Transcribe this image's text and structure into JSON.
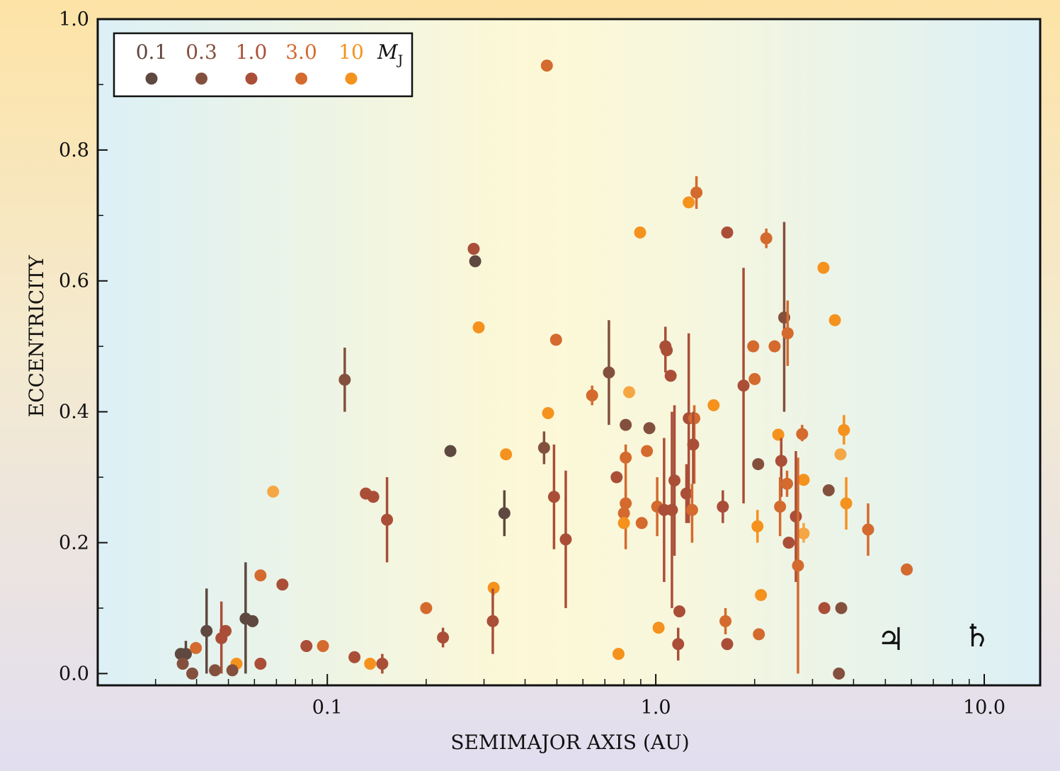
{
  "chart_data": {
    "type": "scatter",
    "title": "",
    "xlabel": "SEMIMAJOR AXIS (AU)",
    "ylabel": "ECCENTRICITY",
    "xscale": "log",
    "xlim": [
      0.02,
      14.8
    ],
    "ylim": [
      -0.018,
      1.0
    ],
    "xticks": [
      {
        "v": 0.1,
        "label": "0.1"
      },
      {
        "v": 1.0,
        "label": "1.0"
      },
      {
        "v": 10.0,
        "label": "10.0"
      }
    ],
    "yticks": [
      {
        "v": 0.0,
        "label": "0.0"
      },
      {
        "v": 0.2,
        "label": "0.2"
      },
      {
        "v": 0.4,
        "label": "0.4"
      },
      {
        "v": 0.6,
        "label": "0.6"
      },
      {
        "v": 0.8,
        "label": "0.8"
      },
      {
        "v": 1.0,
        "label": "1.0"
      }
    ],
    "grid": false,
    "legend": {
      "position": "top-left",
      "unit": "M",
      "unit_sub": "J",
      "entries": [
        {
          "label": "0.1",
          "color": "#5e4840"
        },
        {
          "label": "0.3",
          "color": "#84503e"
        },
        {
          "label": "1.0",
          "color": "#aa4e38"
        },
        {
          "label": "3.0",
          "color": "#d46a2e"
        },
        {
          "label": "10",
          "color": "#f5921e"
        }
      ]
    },
    "extra_colors": [
      "#f5a745"
    ],
    "annotations": [
      {
        "symbol": "♃",
        "name": "Jupiter",
        "a": 5.2,
        "e": 0.045
      },
      {
        "symbol": "♄",
        "name": "Saturn",
        "a": 9.5,
        "e": 0.05
      }
    ],
    "points": [
      {
        "a": 0.466,
        "e": 0.929,
        "m": 3
      },
      {
        "a": 1.33,
        "e": 0.735,
        "m": 3,
        "err": [
          0.71,
          0.76
        ]
      },
      {
        "a": 1.26,
        "e": 0.72,
        "m": 4
      },
      {
        "a": 0.896,
        "e": 0.674,
        "m": 4
      },
      {
        "a": 1.65,
        "e": 0.674,
        "m": 2
      },
      {
        "a": 2.17,
        "e": 0.665,
        "m": 3,
        "err": [
          0.65,
          0.68
        ]
      },
      {
        "a": 0.279,
        "e": 0.649,
        "m": 2
      },
      {
        "a": 0.282,
        "e": 0.63,
        "m": 0
      },
      {
        "a": 3.24,
        "e": 0.62,
        "m": 4
      },
      {
        "a": 3.51,
        "e": 0.54,
        "m": 4
      },
      {
        "a": 2.46,
        "e": 0.544,
        "m": 1,
        "err": [
          0.4,
          0.69
        ]
      },
      {
        "a": 2.52,
        "e": 0.52,
        "m": 3,
        "err": [
          0.47,
          0.57
        ]
      },
      {
        "a": 0.289,
        "e": 0.529,
        "m": 4
      },
      {
        "a": 0.497,
        "e": 0.51,
        "m": 3
      },
      {
        "a": 1.98,
        "e": 0.5,
        "m": 3
      },
      {
        "a": 2.3,
        "e": 0.5,
        "m": 3
      },
      {
        "a": 1.07,
        "e": 0.5,
        "m": 2,
        "err": [
          0.46,
          0.53
        ]
      },
      {
        "a": 1.08,
        "e": 0.494,
        "m": 2
      },
      {
        "a": 0.113,
        "e": 0.449,
        "m": 1,
        "err": [
          0.4,
          0.498
        ]
      },
      {
        "a": 0.72,
        "e": 0.46,
        "m": 1,
        "err": [
          0.38,
          0.54
        ]
      },
      {
        "a": 1.11,
        "e": 0.455,
        "m": 2
      },
      {
        "a": 2.0,
        "e": 0.45,
        "m": 3
      },
      {
        "a": 1.85,
        "e": 0.44,
        "m": 2,
        "err": [
          0.26,
          0.62
        ]
      },
      {
        "a": 0.64,
        "e": 0.425,
        "m": 3,
        "err": [
          0.41,
          0.44
        ]
      },
      {
        "a": 0.83,
        "e": 0.43,
        "m": 5
      },
      {
        "a": 1.5,
        "e": 0.41,
        "m": 4
      },
      {
        "a": 0.47,
        "e": 0.398,
        "m": 4
      },
      {
        "a": 0.81,
        "e": 0.38,
        "m": 1
      },
      {
        "a": 0.956,
        "e": 0.375,
        "m": 1
      },
      {
        "a": 1.26,
        "e": 0.39,
        "m": 2,
        "err": [
          0.23,
          0.52
        ]
      },
      {
        "a": 1.31,
        "e": 0.39,
        "m": 3,
        "err": [
          0.29,
          0.41
        ]
      },
      {
        "a": 3.74,
        "e": 0.372,
        "m": 4,
        "err": [
          0.35,
          0.395
        ]
      },
      {
        "a": 2.79,
        "e": 0.366,
        "m": 3,
        "err": [
          0.355,
          0.38
        ]
      },
      {
        "a": 2.36,
        "e": 0.365,
        "m": 4
      },
      {
        "a": 0.237,
        "e": 0.34,
        "m": 0
      },
      {
        "a": 0.35,
        "e": 0.335,
        "m": 4
      },
      {
        "a": 0.94,
        "e": 0.34,
        "m": 3
      },
      {
        "a": 3.65,
        "e": 0.335,
        "m": 5
      },
      {
        "a": 0.457,
        "e": 0.345,
        "m": 1,
        "err": [
          0.32,
          0.37
        ]
      },
      {
        "a": 1.3,
        "e": 0.35,
        "m": 2,
        "err": [
          0.29,
          0.4
        ]
      },
      {
        "a": 0.81,
        "e": 0.33,
        "m": 3,
        "err": [
          0.19,
          0.35
        ]
      },
      {
        "a": 2.41,
        "e": 0.325,
        "m": 2,
        "err": [
          0.27,
          0.36
        ]
      },
      {
        "a": 2.05,
        "e": 0.32,
        "m": 1
      },
      {
        "a": 0.76,
        "e": 0.3,
        "m": 2
      },
      {
        "a": 1.14,
        "e": 0.295,
        "m": 2,
        "err": [
          0.18,
          0.41
        ]
      },
      {
        "a": 2.82,
        "e": 0.296,
        "m": 4
      },
      {
        "a": 2.51,
        "e": 0.29,
        "m": 3,
        "err": [
          0.27,
          0.31
        ]
      },
      {
        "a": 0.0684,
        "e": 0.278,
        "m": 5
      },
      {
        "a": 3.36,
        "e": 0.28,
        "m": 1
      },
      {
        "a": 0.131,
        "e": 0.275,
        "m": 2
      },
      {
        "a": 0.138,
        "e": 0.27,
        "m": 2
      },
      {
        "a": 1.24,
        "e": 0.275,
        "m": 2,
        "err": [
          0.23,
          0.32
        ]
      },
      {
        "a": 0.49,
        "e": 0.27,
        "m": 2,
        "err": [
          0.19,
          0.35
        ]
      },
      {
        "a": 0.81,
        "e": 0.26,
        "m": 3,
        "err": [
          0.23,
          0.28
        ]
      },
      {
        "a": 3.8,
        "e": 0.26,
        "m": 4,
        "err": [
          0.22,
          0.3
        ]
      },
      {
        "a": 1.6,
        "e": 0.255,
        "m": 2,
        "err": [
          0.23,
          0.28
        ]
      },
      {
        "a": 2.39,
        "e": 0.255,
        "m": 3,
        "err": [
          0.21,
          0.3
        ]
      },
      {
        "a": 1.01,
        "e": 0.255,
        "m": 3,
        "err": [
          0.21,
          0.3
        ]
      },
      {
        "a": 0.346,
        "e": 0.245,
        "m": 0,
        "err": [
          0.21,
          0.28
        ]
      },
      {
        "a": 0.8,
        "e": 0.245,
        "m": 3
      },
      {
        "a": 1.06,
        "e": 0.25,
        "m": 2,
        "err": [
          0.14,
          0.36
        ]
      },
      {
        "a": 1.12,
        "e": 0.25,
        "m": 2,
        "err": [
          0.1,
          0.4
        ]
      },
      {
        "a": 1.29,
        "e": 0.25,
        "m": 3,
        "err": [
          0.2,
          0.29
        ]
      },
      {
        "a": 0.152,
        "e": 0.235,
        "m": 2,
        "err": [
          0.17,
          0.3
        ]
      },
      {
        "a": 2.67,
        "e": 0.24,
        "m": 2,
        "err": [
          0.14,
          0.34
        ]
      },
      {
        "a": 0.906,
        "e": 0.23,
        "m": 3
      },
      {
        "a": 0.8,
        "e": 0.23,
        "m": 4
      },
      {
        "a": 2.04,
        "e": 0.225,
        "m": 4,
        "err": [
          0.2,
          0.25
        ]
      },
      {
        "a": 4.43,
        "e": 0.22,
        "m": 3,
        "err": [
          0.18,
          0.26
        ]
      },
      {
        "a": 2.82,
        "e": 0.214,
        "m": 5,
        "err": [
          0.2,
          0.23
        ]
      },
      {
        "a": 0.532,
        "e": 0.205,
        "m": 2,
        "err": [
          0.1,
          0.31
        ]
      },
      {
        "a": 2.54,
        "e": 0.2,
        "m": 2
      },
      {
        "a": 2.71,
        "e": 0.165,
        "m": 3,
        "err": [
          0.0,
          0.33
        ]
      },
      {
        "a": 5.81,
        "e": 0.159,
        "m": 3
      },
      {
        "a": 0.0626,
        "e": 0.15,
        "m": 3
      },
      {
        "a": 0.073,
        "e": 0.136,
        "m": 2
      },
      {
        "a": 0.321,
        "e": 0.131,
        "m": 4,
        "err": [
          0.12,
          0.14
        ]
      },
      {
        "a": 2.09,
        "e": 0.12,
        "m": 4
      },
      {
        "a": 0.2,
        "e": 0.1,
        "m": 3
      },
      {
        "a": 3.26,
        "e": 0.1,
        "m": 2
      },
      {
        "a": 3.67,
        "e": 0.1,
        "m": 1
      },
      {
        "a": 1.18,
        "e": 0.095,
        "m": 2
      },
      {
        "a": 0.0564,
        "e": 0.084,
        "m": 0,
        "err": [
          0.0,
          0.17
        ]
      },
      {
        "a": 0.0592,
        "e": 0.08,
        "m": 0
      },
      {
        "a": 0.319,
        "e": 0.08,
        "m": 2,
        "err": [
          0.03,
          0.13
        ]
      },
      {
        "a": 1.63,
        "e": 0.08,
        "m": 3,
        "err": [
          0.06,
          0.1
        ]
      },
      {
        "a": 0.0429,
        "e": 0.065,
        "m": 0,
        "err": [
          0.0,
          0.13
        ]
      },
      {
        "a": 0.049,
        "e": 0.065,
        "m": 2
      },
      {
        "a": 0.0476,
        "e": 0.054,
        "m": 2,
        "err": [
          0.0,
          0.11
        ]
      },
      {
        "a": 0.225,
        "e": 0.055,
        "m": 2,
        "err": [
          0.04,
          0.07
        ]
      },
      {
        "a": 1.02,
        "e": 0.07,
        "m": 4
      },
      {
        "a": 2.06,
        "e": 0.06,
        "m": 3
      },
      {
        "a": 0.0864,
        "e": 0.042,
        "m": 2
      },
      {
        "a": 0.097,
        "e": 0.042,
        "m": 3
      },
      {
        "a": 1.17,
        "e": 0.045,
        "m": 2,
        "err": [
          0.02,
          0.07
        ]
      },
      {
        "a": 1.65,
        "e": 0.045,
        "m": 2
      },
      {
        "a": 0.77,
        "e": 0.03,
        "m": 4
      },
      {
        "a": 0.121,
        "e": 0.025,
        "m": 2
      },
      {
        "a": 0.0358,
        "e": 0.03,
        "m": 0
      },
      {
        "a": 0.0371,
        "e": 0.03,
        "m": 0,
        "err": [
          0.01,
          0.05
        ]
      },
      {
        "a": 0.0398,
        "e": 0.039,
        "m": 3
      },
      {
        "a": 0.0363,
        "e": 0.015,
        "m": 1
      },
      {
        "a": 0.0529,
        "e": 0.015,
        "m": 4
      },
      {
        "a": 0.0626,
        "e": 0.015,
        "m": 2
      },
      {
        "a": 0.135,
        "e": 0.015,
        "m": 4
      },
      {
        "a": 0.147,
        "e": 0.015,
        "m": 2,
        "err": [
          0.0,
          0.03
        ]
      },
      {
        "a": 0.0388,
        "e": 0.0,
        "m": 1
      },
      {
        "a": 0.0455,
        "e": 0.005,
        "m": 1
      },
      {
        "a": 0.0514,
        "e": 0.005,
        "m": 1
      },
      {
        "a": 3.61,
        "e": 0.0,
        "m": 1
      }
    ]
  }
}
